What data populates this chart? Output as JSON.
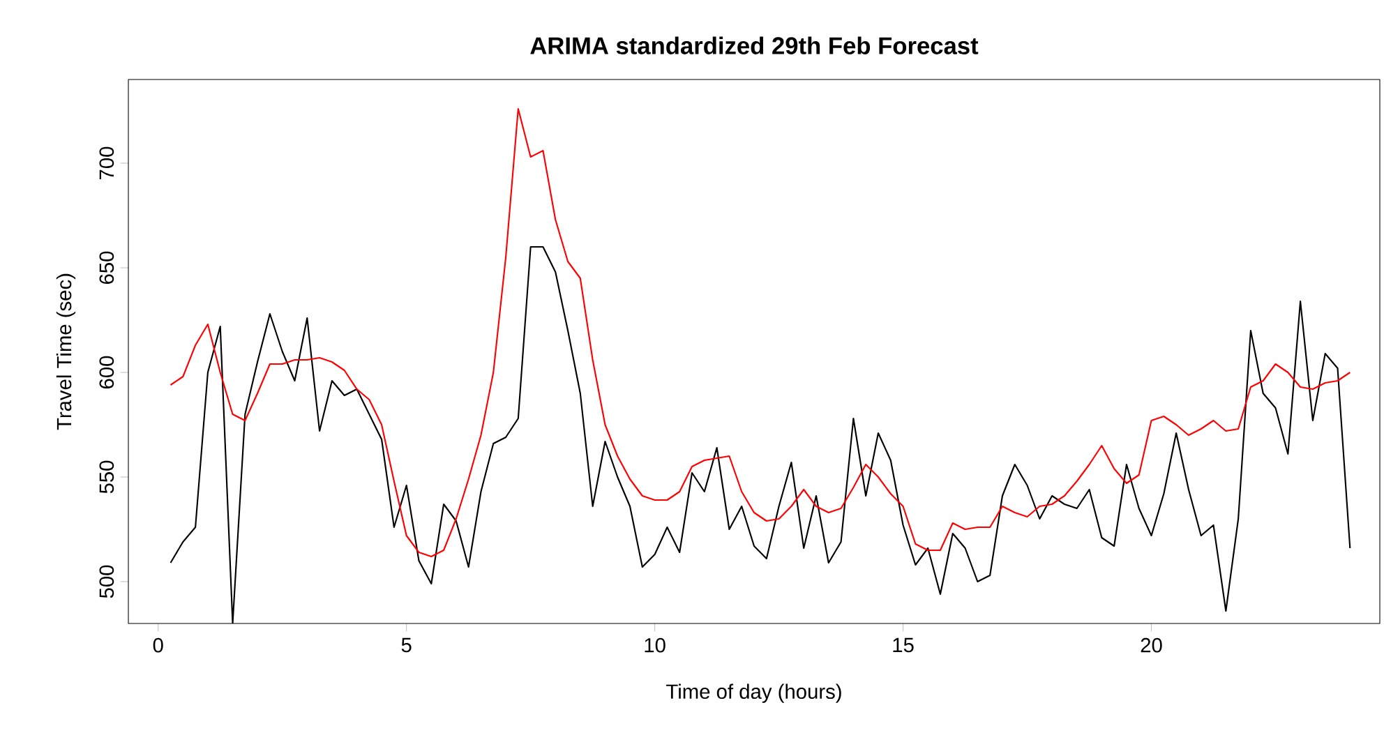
{
  "chart_data": {
    "type": "line",
    "title": "ARIMA standardized 29th Feb Forecast",
    "xlabel": "Time of day (hours)",
    "ylabel": "Travel Time (sec)",
    "x": [
      0.25,
      0.5,
      0.75,
      1,
      1.25,
      1.5,
      1.75,
      2,
      2.25,
      2.5,
      2.75,
      3,
      3.25,
      3.5,
      3.75,
      4,
      4.25,
      4.5,
      4.75,
      5,
      5.25,
      5.5,
      5.75,
      6,
      6.25,
      6.5,
      6.75,
      7,
      7.25,
      7.5,
      7.75,
      8,
      8.25,
      8.5,
      8.75,
      9,
      9.25,
      9.5,
      9.75,
      10,
      10.25,
      10.5,
      10.75,
      11,
      11.25,
      11.5,
      11.75,
      12,
      12.25,
      12.5,
      12.75,
      13,
      13.25,
      13.5,
      13.75,
      14,
      14.25,
      14.5,
      14.75,
      15,
      15.25,
      15.5,
      15.75,
      16,
      16.25,
      16.5,
      16.75,
      17,
      17.25,
      17.5,
      17.75,
      18,
      18.25,
      18.5,
      18.75,
      19,
      19.25,
      19.5,
      19.75,
      20,
      20.25,
      20.5,
      20.75,
      21,
      21.25,
      21.5,
      21.75,
      22,
      22.25,
      22.5,
      22.75,
      23,
      23.25,
      23.5,
      23.75,
      24
    ],
    "series": [
      {
        "color": "#000000",
        "values": [
          509,
          519,
          526,
          600,
          622,
          480,
          580,
          605,
          628,
          610,
          596,
          626,
          572,
          596,
          589,
          592,
          580,
          568,
          526,
          546,
          510,
          499,
          537,
          529,
          507,
          543,
          566,
          569,
          578,
          660,
          660,
          648,
          620,
          590,
          536,
          567,
          550,
          536,
          507,
          513,
          526,
          514,
          552,
          543,
          564,
          525,
          536,
          517,
          511,
          536,
          557,
          516,
          541,
          509,
          519,
          578,
          541,
          571,
          558,
          527,
          508,
          516,
          494,
          523,
          516,
          500,
          503,
          541,
          556,
          546,
          530,
          541,
          537,
          535,
          544,
          521,
          517,
          556,
          535,
          522,
          542,
          571,
          544,
          522,
          527,
          486,
          530,
          620,
          590,
          583,
          561,
          634,
          577,
          609,
          602,
          516
        ]
      },
      {
        "color": "#ff0000",
        "values": [
          594,
          598,
          613,
          623,
          600,
          580,
          577,
          590,
          604,
          604,
          606,
          606,
          607,
          605,
          601,
          592,
          587,
          575,
          548,
          522,
          514,
          512,
          515,
          530,
          549,
          570,
          600,
          655,
          726,
          703,
          706,
          673,
          653,
          645,
          606,
          575,
          560,
          549,
          541,
          539,
          539,
          543,
          555,
          558,
          559,
          560,
          543,
          533,
          529,
          530,
          536,
          544,
          536,
          533,
          535,
          545,
          556,
          550,
          542,
          536,
          518,
          515,
          515,
          528,
          525,
          526,
          526,
          536,
          533,
          531,
          536,
          537,
          541,
          548,
          556,
          565,
          554,
          547,
          551,
          577,
          579,
          575,
          570,
          573,
          577,
          572,
          573,
          593,
          596,
          604,
          600,
          593,
          592,
          595,
          596,
          600
        ]
      }
    ],
    "xlim": [
      -0.6,
      24.6
    ],
    "ylim": [
      480,
      740
    ],
    "xticks": [
      0,
      5,
      10,
      15,
      20
    ],
    "yticks": [
      500,
      550,
      600,
      650,
      700
    ]
  }
}
